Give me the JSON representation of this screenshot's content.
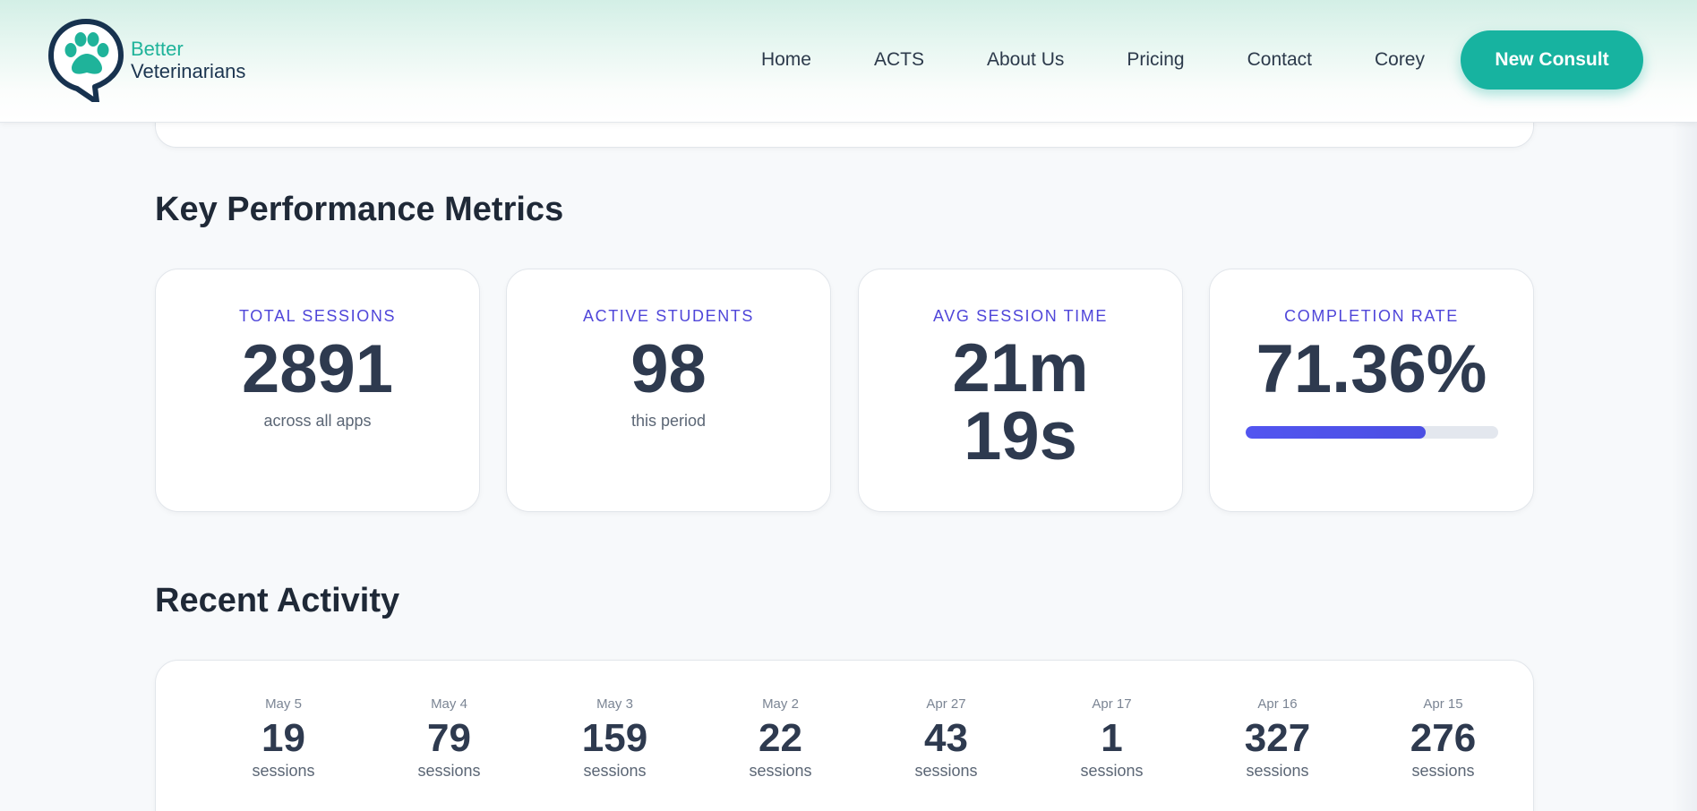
{
  "brand": {
    "line1": "Better",
    "line2": "Veterinarians"
  },
  "nav": {
    "items": [
      "Home",
      "ACTS",
      "About Us",
      "Pricing",
      "Contact",
      "Corey"
    ],
    "cta": "New Consult"
  },
  "kpi": {
    "title": "Key Performance Metrics",
    "cards": [
      {
        "label": "TOTAL SESSIONS",
        "value": "2891",
        "sub": "across all apps"
      },
      {
        "label": "ACTIVE STUDENTS",
        "value": "98",
        "sub": "this period"
      },
      {
        "label": "AVG SESSION TIME",
        "value_line1": "21m",
        "value_line2": "19s"
      },
      {
        "label": "COMPLETION RATE",
        "value": "71.36%",
        "progress_percent": 71.36
      }
    ]
  },
  "activity": {
    "title": "Recent Activity",
    "days": [
      {
        "date": "May 5",
        "count": "19",
        "unit": "sessions"
      },
      {
        "date": "May 4",
        "count": "79",
        "unit": "sessions"
      },
      {
        "date": "May 3",
        "count": "159",
        "unit": "sessions"
      },
      {
        "date": "May 2",
        "count": "22",
        "unit": "sessions"
      },
      {
        "date": "Apr 27",
        "count": "43",
        "unit": "sessions"
      },
      {
        "date": "Apr 17",
        "count": "1",
        "unit": "sessions"
      },
      {
        "date": "Apr 16",
        "count": "327",
        "unit": "sessions"
      },
      {
        "date": "Apr 15",
        "count": "276",
        "unit": "sessions"
      }
    ]
  },
  "colors": {
    "accent": "#17b3a0",
    "label": "#4f46d9",
    "progress": "#5255f0",
    "value": "#2e3a4f"
  },
  "icons": {
    "logo": "paw-chat-bubble-icon"
  }
}
